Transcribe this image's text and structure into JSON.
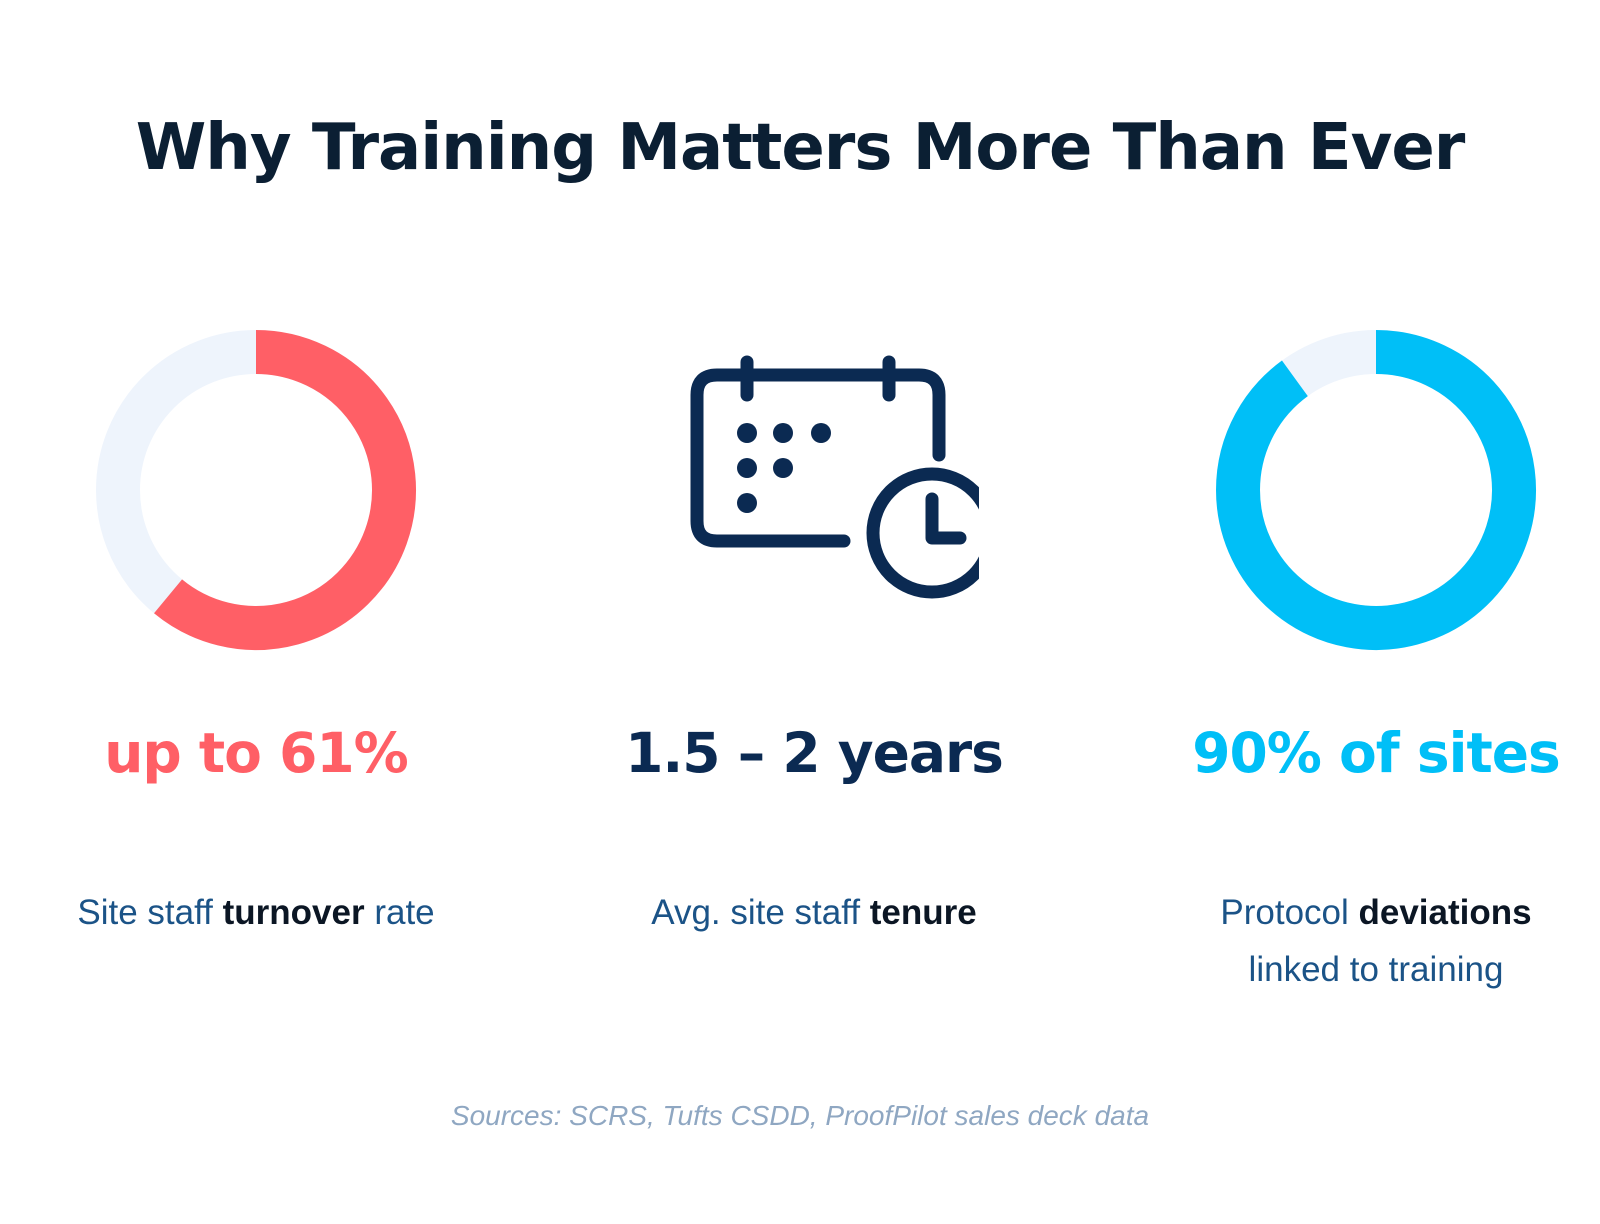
{
  "title": "Why Training Matters More Than Ever",
  "colors": {
    "red": "#ff5f66",
    "navy": "#0b2a52",
    "cyan": "#00bff7",
    "track": "#eef4fc"
  },
  "chart_data": [
    {
      "type": "pie",
      "style": "donut",
      "value_percent": 61,
      "categories": [
        "turnover",
        "remaining"
      ],
      "values": [
        61,
        39
      ],
      "stat": "up to 61%",
      "label_parts": {
        "before": "Site staff ",
        "bold": "turnover",
        "after": " rate"
      }
    },
    {
      "type": "icon",
      "icon": "calendar-clock-icon",
      "stat": "1.5 – 2 years",
      "label_parts": {
        "before": "Avg. site staff ",
        "bold": "tenure",
        "after": ""
      }
    },
    {
      "type": "pie",
      "style": "donut",
      "value_percent": 90,
      "categories": [
        "sites with deviations",
        "remaining"
      ],
      "values": [
        90,
        10
      ],
      "stat": "90% of sites",
      "label_parts": {
        "before": "Protocol ",
        "bold": "deviations",
        "after": "linked to training"
      }
    }
  ],
  "sources": "Sources: SCRS, Tufts CSDD, ProofPilot sales deck data"
}
